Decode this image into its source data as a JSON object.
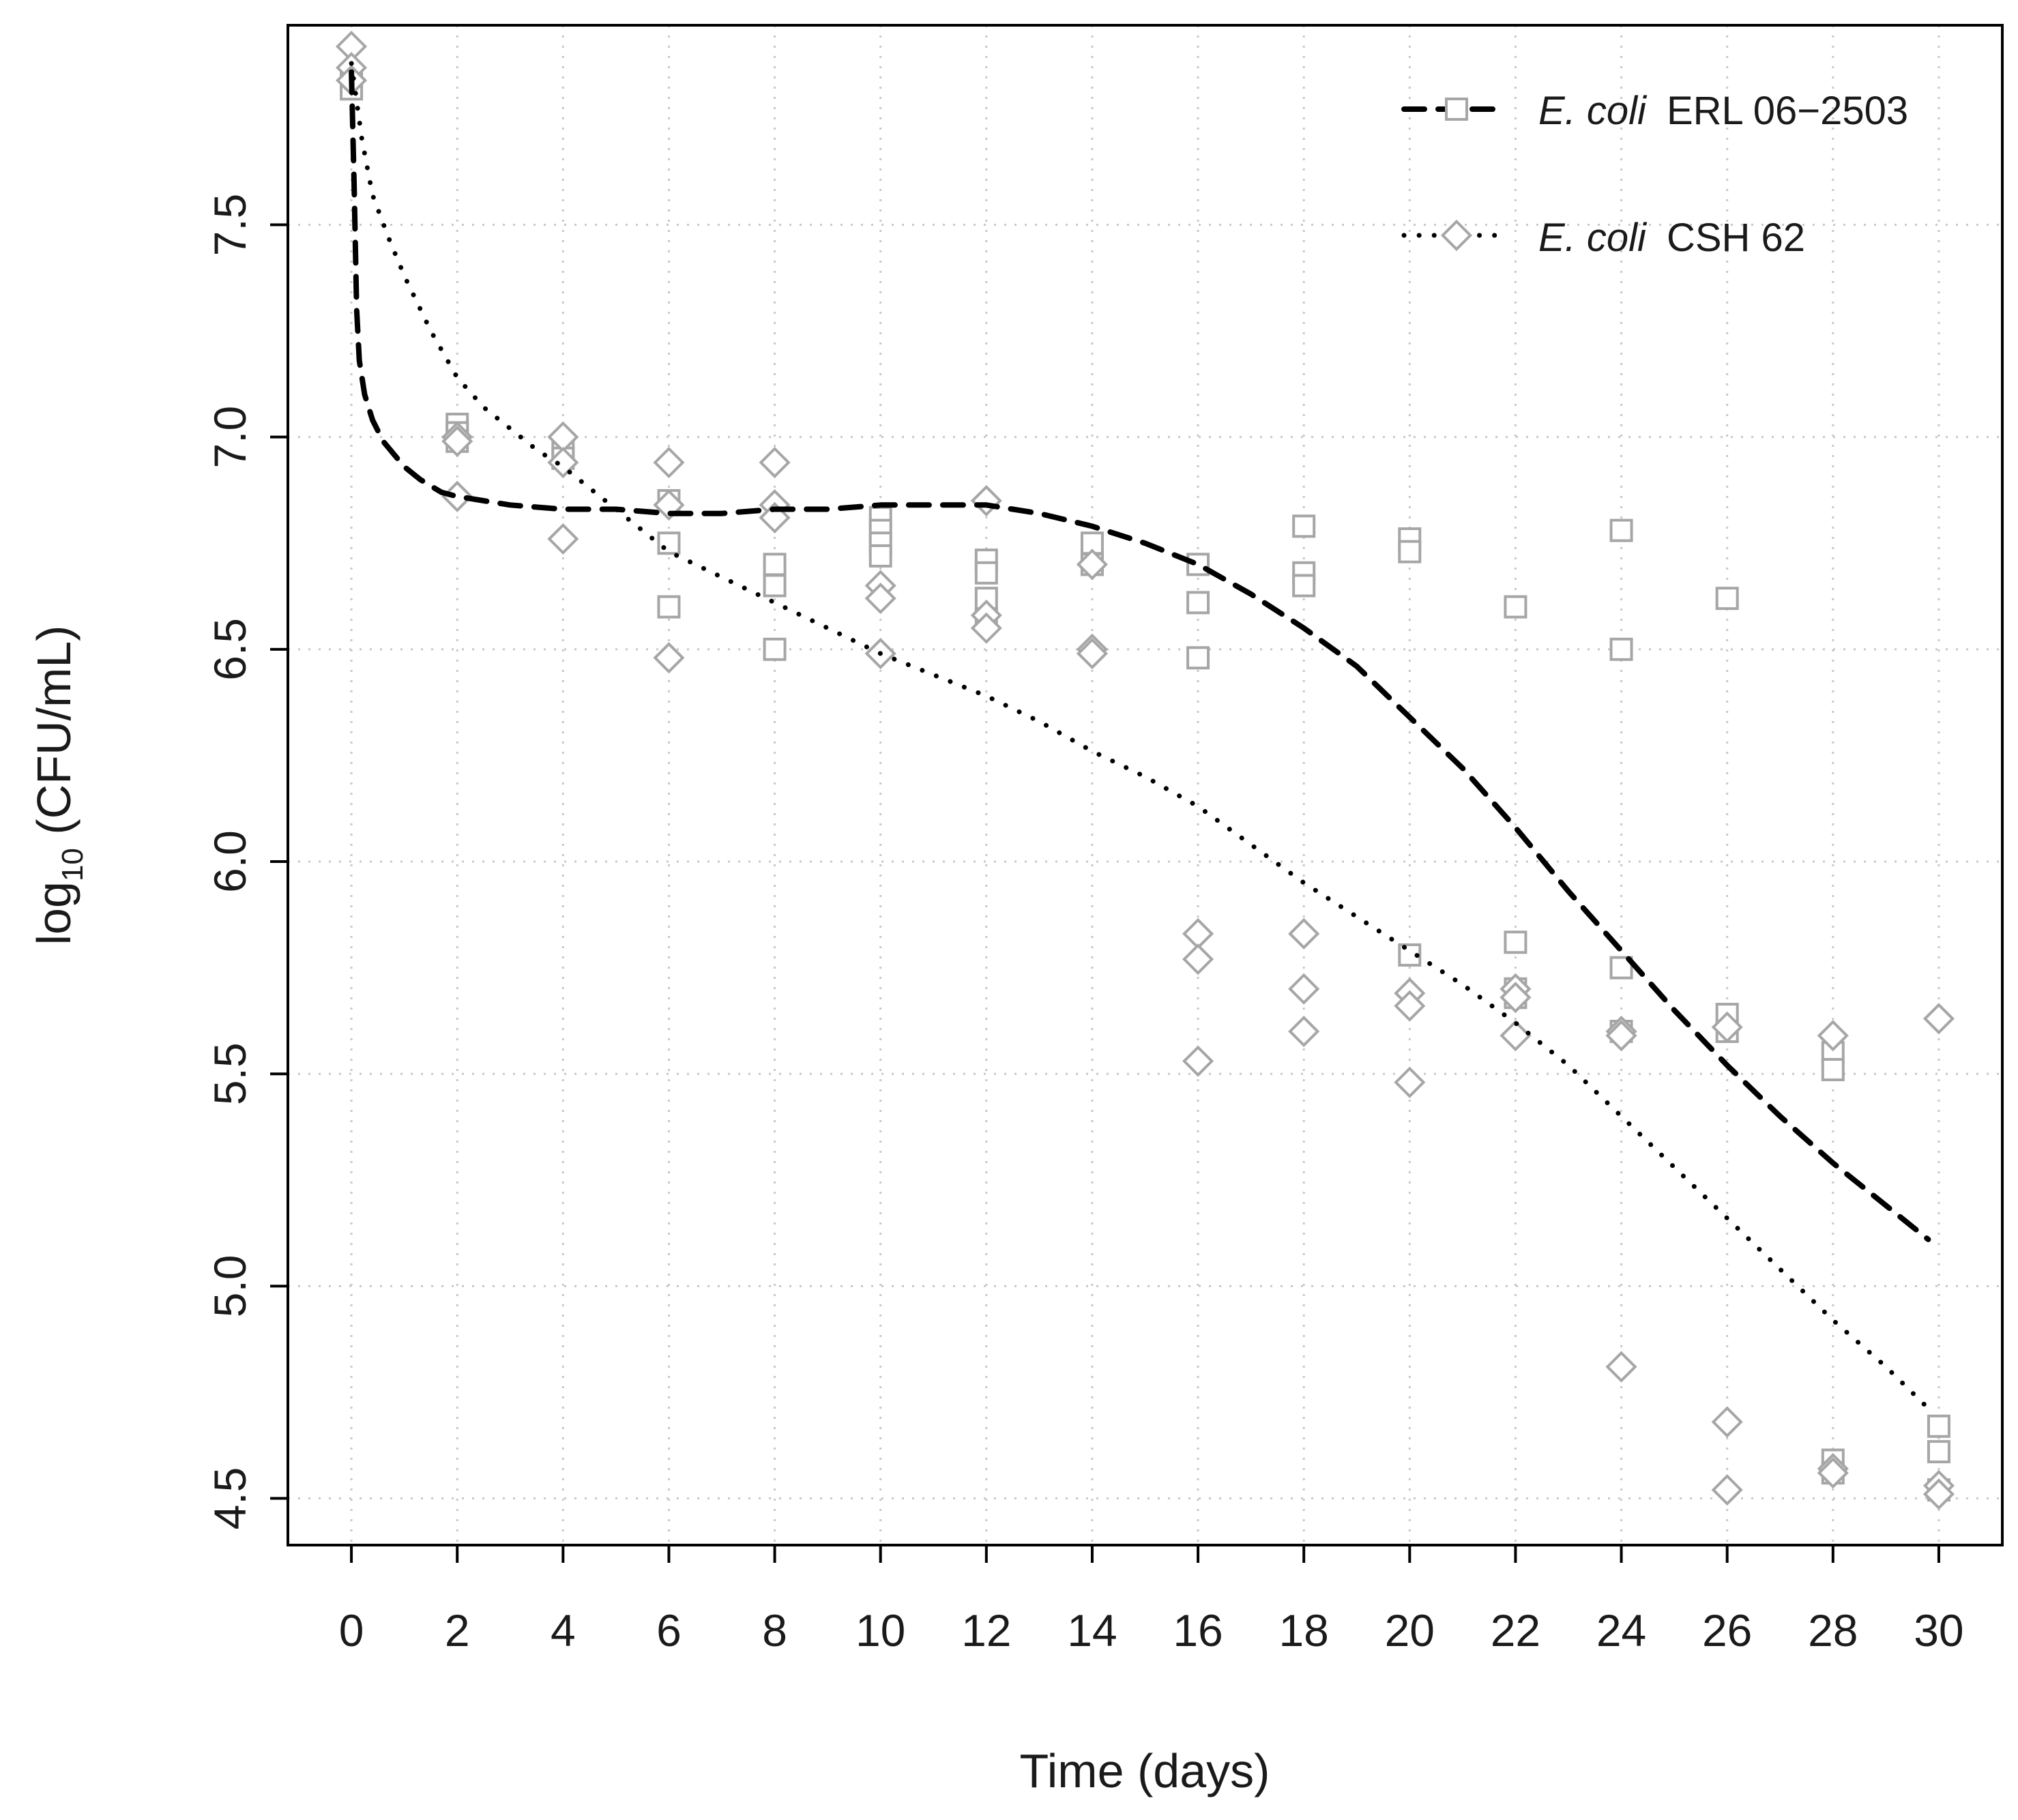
{
  "chart_data": {
    "type": "scatter",
    "title": "",
    "xlabel": "Time (days)",
    "ylabel_prefix": "log",
    "ylabel_sub": "10",
    "ylabel_suffix": " (CFU/mL)",
    "xlim": [
      -1.2,
      31.2
    ],
    "ylim": [
      4.39,
      7.97
    ],
    "xticks": [
      "0",
      "2",
      "4",
      "6",
      "8",
      "10",
      "12",
      "14",
      "16",
      "18",
      "20",
      "22",
      "24",
      "26",
      "28",
      "30"
    ],
    "xtick_values": [
      0,
      2,
      4,
      6,
      8,
      10,
      12,
      14,
      16,
      18,
      20,
      22,
      24,
      26,
      28,
      30
    ],
    "yticks": [
      "4.5",
      "5.0",
      "5.5",
      "6.0",
      "6.5",
      "7.0",
      "7.5"
    ],
    "ytick_values": [
      4.5,
      5.0,
      5.5,
      6.0,
      6.5,
      7.0,
      7.5
    ],
    "grid": true,
    "legend_position": "top-right",
    "series": [
      {
        "name": "E. coli ERL 06−2503",
        "label_italic": "E. coli",
        "label_rest": "ERL 06−2503",
        "marker": "square",
        "line": "dashed",
        "color": "#000000",
        "marker_color": "#a6a6a6",
        "points": [
          [
            0,
            7.83
          ],
          [
            0,
            7.82
          ],
          [
            0,
            7.85
          ],
          [
            2,
            7.03
          ],
          [
            2,
            7.01
          ],
          [
            2,
            6.99
          ],
          [
            4,
            6.97
          ],
          [
            4,
            6.95
          ],
          [
            6,
            6.85
          ],
          [
            6,
            6.75
          ],
          [
            6,
            6.6
          ],
          [
            8,
            6.7
          ],
          [
            8,
            6.65
          ],
          [
            8,
            6.5
          ],
          [
            10,
            6.81
          ],
          [
            10,
            6.78
          ],
          [
            10,
            6.75
          ],
          [
            10,
            6.72
          ],
          [
            12,
            6.71
          ],
          [
            12,
            6.68
          ],
          [
            12,
            6.62
          ],
          [
            12,
            6.57
          ],
          [
            14,
            6.75
          ],
          [
            14,
            6.7
          ],
          [
            14,
            6.7
          ],
          [
            16,
            6.7
          ],
          [
            16,
            6.61
          ],
          [
            16,
            6.48
          ],
          [
            18,
            6.79
          ],
          [
            18,
            6.68
          ],
          [
            18,
            6.65
          ],
          [
            20,
            6.76
          ],
          [
            20,
            6.73
          ],
          [
            20,
            5.78
          ],
          [
            22,
            6.6
          ],
          [
            22,
            5.81
          ],
          [
            22,
            5.7
          ],
          [
            22,
            5.68
          ],
          [
            24,
            6.78
          ],
          [
            24,
            6.5
          ],
          [
            24,
            5.75
          ],
          [
            24,
            5.6
          ],
          [
            26,
            6.62
          ],
          [
            26,
            5.64
          ],
          [
            26,
            5.6
          ],
          [
            28,
            5.55
          ],
          [
            28,
            5.51
          ],
          [
            28,
            4.59
          ],
          [
            28,
            4.56
          ],
          [
            30,
            4.67
          ],
          [
            30,
            4.61
          ],
          [
            30,
            4.52
          ]
        ],
        "curve": [
          [
            0,
            7.86
          ],
          [
            0.05,
            7.6
          ],
          [
            0.1,
            7.3
          ],
          [
            0.15,
            7.18
          ],
          [
            0.25,
            7.1
          ],
          [
            0.4,
            7.04
          ],
          [
            0.6,
            6.99
          ],
          [
            0.8,
            6.96
          ],
          [
            1.0,
            6.93
          ],
          [
            1.3,
            6.9
          ],
          [
            1.7,
            6.87
          ],
          [
            2,
            6.86
          ],
          [
            3,
            6.84
          ],
          [
            4,
            6.83
          ],
          [
            5,
            6.83
          ],
          [
            6,
            6.82
          ],
          [
            7,
            6.82
          ],
          [
            8,
            6.83
          ],
          [
            9,
            6.83
          ],
          [
            10,
            6.84
          ],
          [
            11,
            6.84
          ],
          [
            12,
            6.84
          ],
          [
            13,
            6.82
          ],
          [
            14,
            6.79
          ],
          [
            15,
            6.75
          ],
          [
            16,
            6.7
          ],
          [
            17,
            6.63
          ],
          [
            18,
            6.55
          ],
          [
            19,
            6.46
          ],
          [
            20,
            6.34
          ],
          [
            21,
            6.22
          ],
          [
            22,
            6.08
          ],
          [
            23,
            5.93
          ],
          [
            24,
            5.79
          ],
          [
            25,
            5.65
          ],
          [
            26,
            5.52
          ],
          [
            27,
            5.4
          ],
          [
            28,
            5.29
          ],
          [
            29,
            5.19
          ],
          [
            29.8,
            5.11
          ]
        ]
      },
      {
        "name": "E. coli CSH 62",
        "label_italic": "E. coli",
        "label_rest": "CSH 62",
        "marker": "diamond",
        "line": "dotted",
        "color": "#000000",
        "marker_color": "#a6a6a6",
        "points": [
          [
            0,
            7.92
          ],
          [
            0,
            7.87
          ],
          [
            0,
            7.84
          ],
          [
            2,
            7.0
          ],
          [
            2,
            6.99
          ],
          [
            2,
            6.86
          ],
          [
            4,
            7.0
          ],
          [
            4,
            6.94
          ],
          [
            4,
            6.76
          ],
          [
            6,
            6.94
          ],
          [
            6,
            6.84
          ],
          [
            6,
            6.48
          ],
          [
            8,
            6.94
          ],
          [
            8,
            6.84
          ],
          [
            8,
            6.81
          ],
          [
            10,
            6.65
          ],
          [
            10,
            6.62
          ],
          [
            10,
            6.49
          ],
          [
            12,
            6.85
          ],
          [
            12,
            6.58
          ],
          [
            12,
            6.55
          ],
          [
            14,
            6.7
          ],
          [
            14,
            6.5
          ],
          [
            14,
            6.49
          ],
          [
            16,
            5.83
          ],
          [
            16,
            5.77
          ],
          [
            16,
            5.53
          ],
          [
            18,
            5.83
          ],
          [
            18,
            5.7
          ],
          [
            18,
            5.6
          ],
          [
            20,
            5.69
          ],
          [
            20,
            5.66
          ],
          [
            20,
            5.48
          ],
          [
            22,
            5.7
          ],
          [
            22,
            5.68
          ],
          [
            22,
            5.59
          ],
          [
            24,
            5.6
          ],
          [
            24,
            5.59
          ],
          [
            24,
            4.81
          ],
          [
            26,
            5.61
          ],
          [
            26,
            4.68
          ],
          [
            26,
            4.52
          ],
          [
            28,
            5.59
          ],
          [
            28,
            4.57
          ],
          [
            28,
            4.56
          ],
          [
            30,
            5.63
          ],
          [
            30,
            4.53
          ],
          [
            30,
            4.51
          ]
        ],
        "curve": [
          [
            0,
            7.88
          ],
          [
            0.2,
            7.7
          ],
          [
            0.4,
            7.57
          ],
          [
            0.7,
            7.47
          ],
          [
            1.0,
            7.38
          ],
          [
            1.5,
            7.25
          ],
          [
            2,
            7.14
          ],
          [
            2.5,
            7.07
          ],
          [
            3,
            7.02
          ],
          [
            3.5,
            6.97
          ],
          [
            4,
            6.93
          ],
          [
            4.5,
            6.88
          ],
          [
            5,
            6.83
          ],
          [
            6,
            6.73
          ],
          [
            7,
            6.67
          ],
          [
            8,
            6.61
          ],
          [
            9,
            6.55
          ],
          [
            10,
            6.49
          ],
          [
            11,
            6.44
          ],
          [
            12,
            6.39
          ],
          [
            13,
            6.33
          ],
          [
            14,
            6.26
          ],
          [
            15,
            6.2
          ],
          [
            16,
            6.13
          ],
          [
            17,
            6.04
          ],
          [
            18,
            5.95
          ],
          [
            19,
            5.87
          ],
          [
            20,
            5.79
          ],
          [
            21,
            5.71
          ],
          [
            22,
            5.62
          ],
          [
            23,
            5.52
          ],
          [
            24,
            5.4
          ],
          [
            25,
            5.28
          ],
          [
            26,
            5.16
          ],
          [
            27,
            5.04
          ],
          [
            28,
            4.92
          ],
          [
            29,
            4.81
          ],
          [
            29.9,
            4.7
          ]
        ]
      }
    ]
  }
}
